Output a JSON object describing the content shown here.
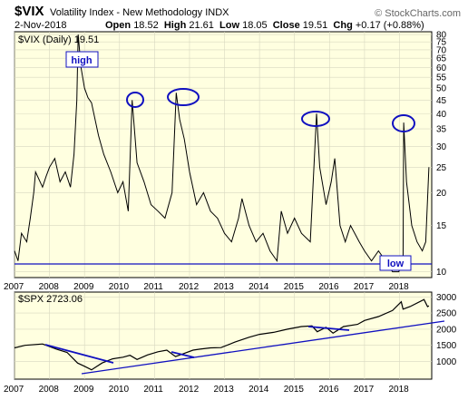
{
  "header": {
    "symbol": "$VIX",
    "name": "Volatility Index - New Methodology  INDX",
    "brand": "© StockCharts.com",
    "date": "2-Nov-2018",
    "open_label": "Open",
    "open": "18.52",
    "high_label": "High",
    "high": "21.61",
    "low_label": "Low",
    "low": "18.05",
    "close_label": "Close",
    "close": "19.51",
    "chg_label": "Chg",
    "chg": "+0.17 (+0.88%)"
  },
  "colors": {
    "panel_bg": "#ffffe0",
    "line": "#000000",
    "annotation": "#1010c0"
  },
  "chart_data": [
    {
      "type": "line",
      "legend": "$VIX (Daily) 19.51",
      "y_scale": "log",
      "ylim": [
        9.5,
        82
      ],
      "yticks": [
        10,
        15,
        20,
        25,
        30,
        35,
        40,
        45,
        50,
        55,
        60,
        65,
        70,
        75,
        80
      ],
      "x_ticks": [
        "2007",
        "2008",
        "2009",
        "2010",
        "2011",
        "2012",
        "2013",
        "2014",
        "2015",
        "2016",
        "2017",
        "2018"
      ],
      "x": [
        2007.0,
        2007.1,
        2007.2,
        2007.35,
        2007.45,
        2007.55,
        2007.6,
        2007.8,
        2007.9,
        2008.0,
        2008.15,
        2008.3,
        2008.45,
        2008.6,
        2008.7,
        2008.78,
        2008.82,
        2008.9,
        2009.0,
        2009.1,
        2009.2,
        2009.4,
        2009.55,
        2009.75,
        2009.95,
        2010.1,
        2010.25,
        2010.36,
        2010.5,
        2010.7,
        2010.9,
        2011.1,
        2011.3,
        2011.5,
        2011.62,
        2011.72,
        2011.85,
        2012.0,
        2012.2,
        2012.4,
        2012.6,
        2012.8,
        2013.0,
        2013.2,
        2013.4,
        2013.5,
        2013.7,
        2013.9,
        2014.1,
        2014.3,
        2014.5,
        2014.62,
        2014.8,
        2015.0,
        2015.2,
        2015.45,
        2015.63,
        2015.72,
        2015.9,
        2016.05,
        2016.15,
        2016.3,
        2016.45,
        2016.6,
        2016.85,
        2017.0,
        2017.2,
        2017.4,
        2017.6,
        2017.8,
        2017.98,
        2018.1,
        2018.12,
        2018.2,
        2018.35,
        2018.5,
        2018.65,
        2018.75,
        2018.84
      ],
      "values": [
        12,
        11,
        14,
        13,
        16,
        20,
        24,
        21,
        23,
        25,
        27,
        22,
        24,
        21,
        28,
        45,
        80,
        60,
        50,
        46,
        44,
        33,
        28,
        24,
        20,
        22,
        17,
        45,
        26,
        22,
        18,
        17,
        16,
        20,
        48,
        38,
        32,
        24,
        18,
        20,
        17,
        16,
        14,
        13,
        16,
        19,
        15,
        13,
        14,
        12,
        11,
        17,
        14,
        16,
        14,
        13,
        40,
        25,
        18,
        22,
        27,
        15,
        13,
        15,
        13,
        12,
        11,
        12,
        11,
        10,
        10,
        11,
        37,
        22,
        15,
        13,
        12,
        13,
        25
      ]
    },
    {
      "type": "line",
      "legend": "$SPX 2723.06",
      "ylim": [
        450,
        3150
      ],
      "yticks": [
        1000,
        1500,
        2000,
        2500,
        3000
      ],
      "x_ticks": [
        "2007",
        "2008",
        "2009",
        "2010",
        "2011",
        "2012",
        "2013",
        "2014",
        "2015",
        "2016",
        "2017",
        "2018"
      ],
      "x": [
        2007.0,
        2007.3,
        2007.8,
        2008.2,
        2008.5,
        2008.8,
        2009.0,
        2009.2,
        2009.5,
        2009.8,
        2010.1,
        2010.3,
        2010.5,
        2010.8,
        2011.1,
        2011.35,
        2011.6,
        2011.8,
        2012.1,
        2012.3,
        2012.6,
        2012.9,
        2013.3,
        2013.7,
        2014.0,
        2014.4,
        2014.8,
        2015.2,
        2015.5,
        2015.65,
        2015.9,
        2016.1,
        2016.4,
        2016.8,
        2017.0,
        2017.4,
        2017.8,
        2018.05,
        2018.1,
        2018.3,
        2018.7,
        2018.8,
        2018.84
      ],
      "values": [
        1420,
        1500,
        1540,
        1380,
        1280,
        950,
        850,
        740,
        950,
        1080,
        1130,
        1190,
        1060,
        1200,
        1300,
        1350,
        1150,
        1230,
        1350,
        1380,
        1420,
        1430,
        1600,
        1750,
        1840,
        1900,
        2000,
        2080,
        2100,
        1920,
        2060,
        1880,
        2080,
        2150,
        2270,
        2390,
        2580,
        2850,
        2620,
        2700,
        2920,
        2700,
        2723
      ]
    }
  ],
  "annotations": {
    "high": "high",
    "low": "low"
  }
}
